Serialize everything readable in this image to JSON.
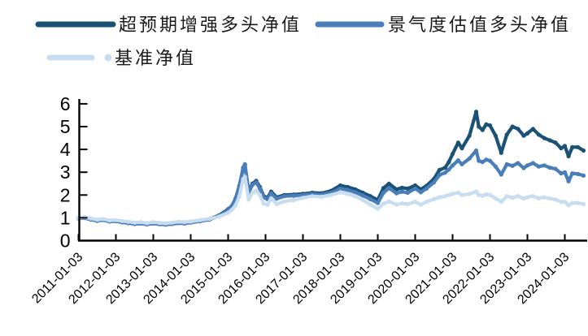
{
  "chart_data": {
    "type": "line",
    "grid": false,
    "legend_position": "top-left",
    "axis_color": "#000000",
    "marker": "circle",
    "y_ticks": [
      0,
      1,
      2,
      3,
      4,
      5,
      6
    ],
    "y_range": [
      0,
      6
    ],
    "x_tick_years": [
      2011,
      2012,
      2013,
      2014,
      2015,
      2016,
      2017,
      2018,
      2019,
      2020,
      2021,
      2022,
      2023,
      2024
    ],
    "x_tick_labels": [
      "2011-01-03",
      "2012-01-03",
      "2013-01-03",
      "2014-01-03",
      "2015-01-03",
      "2016-01-03",
      "2017-01-03",
      "2018-01-03",
      "2019-01-03",
      "2020-01-03",
      "2021-01-03",
      "2022-01-03",
      "2023-01-03",
      "2024-01-03"
    ],
    "x_years": [
      2011.0,
      2011.17,
      2011.33,
      2011.5,
      2011.67,
      2011.83,
      2012.0,
      2012.17,
      2012.33,
      2012.5,
      2012.67,
      2012.83,
      2013.0,
      2013.17,
      2013.33,
      2013.5,
      2013.67,
      2013.83,
      2014.0,
      2014.25,
      2014.5,
      2014.75,
      2015.0,
      2015.1,
      2015.2,
      2015.3,
      2015.4,
      2015.45,
      2015.55,
      2015.65,
      2015.75,
      2015.85,
      2015.95,
      2016.05,
      2016.15,
      2016.3,
      2016.5,
      2016.75,
      2017.0,
      2017.25,
      2017.5,
      2017.75,
      2018.0,
      2018.2,
      2018.4,
      2018.6,
      2018.8,
      2019.0,
      2019.15,
      2019.3,
      2019.5,
      2019.65,
      2019.8,
      2020.0,
      2020.15,
      2020.3,
      2020.5,
      2020.65,
      2020.8,
      2020.9,
      2021.0,
      2021.15,
      2021.25,
      2021.45,
      2021.63,
      2021.7,
      2021.8,
      2021.9,
      2022.0,
      2022.15,
      2022.3,
      2022.45,
      2022.6,
      2022.75,
      2022.9,
      2023.0,
      2023.15,
      2023.3,
      2023.45,
      2023.6,
      2023.75,
      2023.9,
      2024.0,
      2024.1,
      2024.2,
      2024.35,
      2024.5
    ],
    "series": [
      {
        "name": "超预期增强多头净值",
        "color": "#1A5276",
        "values": [
          1.0,
          1.02,
          0.95,
          0.9,
          0.93,
          0.87,
          0.88,
          0.83,
          0.8,
          0.76,
          0.78,
          0.74,
          0.78,
          0.75,
          0.73,
          0.76,
          0.8,
          0.78,
          0.82,
          0.88,
          0.95,
          1.1,
          1.38,
          1.52,
          1.85,
          2.4,
          3.15,
          3.3,
          2.15,
          2.5,
          2.62,
          2.35,
          1.95,
          1.88,
          2.15,
          1.9,
          2.0,
          2.02,
          2.05,
          2.1,
          2.08,
          2.18,
          2.42,
          2.35,
          2.25,
          2.1,
          1.95,
          1.78,
          2.3,
          2.5,
          2.25,
          2.32,
          2.28,
          2.42,
          2.25,
          2.4,
          2.7,
          3.1,
          3.2,
          3.45,
          3.8,
          4.3,
          4.05,
          4.6,
          5.65,
          5.0,
          4.85,
          5.1,
          5.05,
          4.6,
          3.85,
          4.65,
          5.0,
          4.9,
          4.6,
          4.7,
          4.9,
          4.65,
          4.5,
          4.4,
          4.3,
          4.05,
          4.15,
          3.7,
          4.1,
          4.1,
          3.95
        ]
      },
      {
        "name": "景气度估值多头净值",
        "color": "#4A7EBB",
        "values": [
          0.98,
          0.99,
          0.92,
          0.87,
          0.9,
          0.84,
          0.85,
          0.8,
          0.77,
          0.73,
          0.75,
          0.71,
          0.75,
          0.72,
          0.7,
          0.73,
          0.77,
          0.75,
          0.79,
          0.85,
          0.92,
          1.08,
          1.35,
          1.5,
          1.82,
          2.35,
          3.2,
          3.35,
          2.1,
          2.45,
          2.55,
          2.28,
          1.9,
          1.82,
          2.08,
          1.84,
          1.95,
          1.97,
          2.0,
          2.04,
          2.02,
          2.1,
          2.28,
          2.22,
          2.12,
          1.98,
          1.82,
          1.65,
          2.1,
          2.3,
          2.08,
          2.15,
          2.1,
          2.28,
          2.12,
          2.28,
          2.55,
          2.88,
          2.98,
          3.12,
          3.3,
          3.52,
          3.35,
          3.6,
          3.95,
          3.5,
          3.45,
          3.55,
          3.5,
          3.25,
          2.9,
          3.35,
          3.28,
          3.4,
          3.18,
          3.3,
          3.4,
          3.25,
          3.3,
          3.2,
          3.15,
          2.95,
          3.0,
          2.6,
          2.95,
          2.92,
          2.85
        ]
      },
      {
        "name": "基准净值",
        "color": "#C9DDF0",
        "values": [
          1.0,
          1.03,
          0.97,
          0.92,
          0.95,
          0.89,
          0.9,
          0.86,
          0.83,
          0.79,
          0.81,
          0.77,
          0.81,
          0.78,
          0.76,
          0.79,
          0.83,
          0.81,
          0.84,
          0.9,
          0.96,
          1.05,
          1.22,
          1.35,
          1.55,
          1.95,
          2.7,
          2.8,
          1.8,
          2.1,
          2.2,
          2.0,
          1.62,
          1.58,
          1.85,
          1.6,
          1.72,
          1.78,
          1.88,
          1.95,
          1.92,
          2.0,
          2.12,
          2.05,
          1.95,
          1.78,
          1.58,
          1.4,
          1.62,
          1.72,
          1.58,
          1.63,
          1.6,
          1.7,
          1.58,
          1.7,
          1.82,
          1.9,
          1.95,
          2.0,
          2.05,
          2.1,
          2.0,
          2.05,
          2.15,
          2.0,
          1.97,
          2.03,
          2.0,
          1.85,
          1.7,
          1.95,
          1.88,
          1.95,
          1.85,
          1.9,
          1.95,
          1.86,
          1.9,
          1.85,
          1.8,
          1.7,
          1.7,
          1.55,
          1.65,
          1.65,
          1.6
        ]
      }
    ]
  }
}
